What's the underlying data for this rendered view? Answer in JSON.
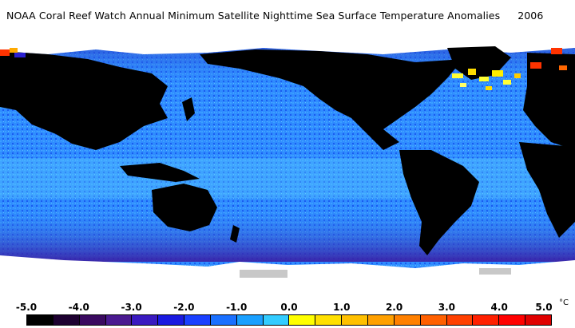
{
  "title": {
    "text": "NOAA Coral Reef Watch Annual Minimum Satellite Nighttime Sea Surface Temperature Anomalies",
    "year": "2006"
  },
  "map": {
    "ocean_color": "#2f7dff",
    "land_color": "#000000",
    "ice_color": "#ffffff",
    "anomaly_colors": [
      "#1a0033",
      "#3a0a6a",
      "#5b1fa0",
      "#2a1fd0",
      "#1a3cff",
      "#1a6cff",
      "#2f9bff",
      "#33ccff",
      "#ffff33",
      "#ffdd00",
      "#ffaa00",
      "#ff7700",
      "#ff3300",
      "#ff0000"
    ]
  },
  "legend": {
    "ticks": [
      "-5.0",
      "-4.0",
      "-3.0",
      "-2.0",
      "-1.0",
      "0.0",
      "1.0",
      "2.0",
      "3.0",
      "4.0",
      "5.0"
    ],
    "unit": "°C",
    "colors": [
      "#000000",
      "#1d0030",
      "#3a0a60",
      "#4a1a90",
      "#3a1ac0",
      "#1a1ae0",
      "#1a40ff",
      "#1a70ff",
      "#1aa0ff",
      "#33ccff",
      "#ffff00",
      "#ffe000",
      "#ffc000",
      "#ffa000",
      "#ff8000",
      "#ff6000",
      "#ff4000",
      "#ff2000",
      "#ff0000",
      "#e00000"
    ]
  }
}
